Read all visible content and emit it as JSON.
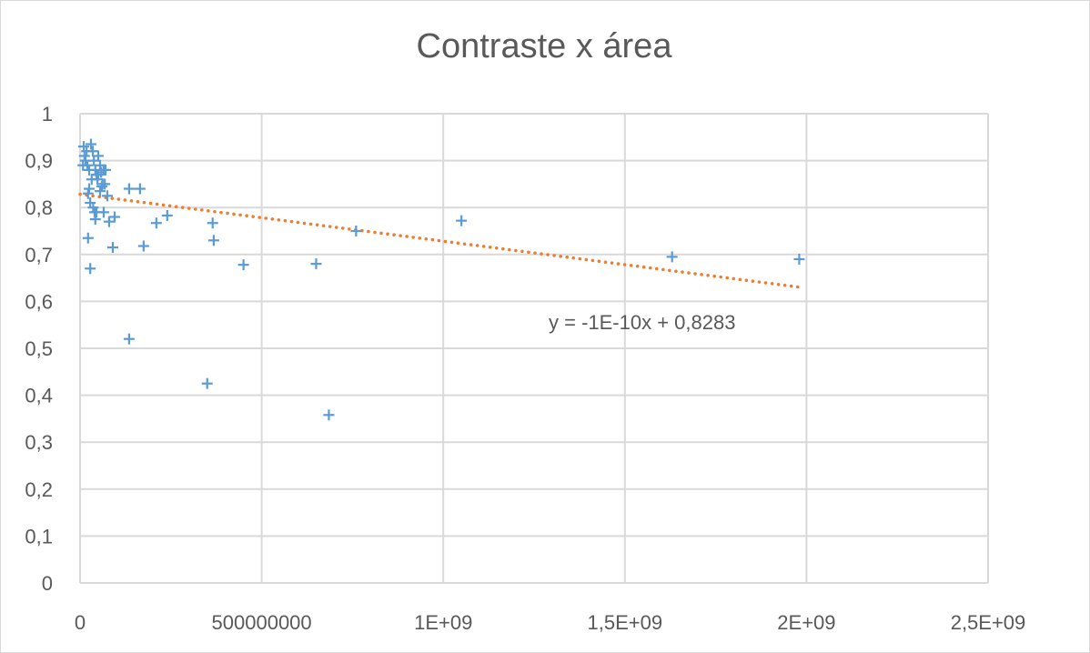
{
  "chart_data": {
    "type": "scatter",
    "title": "Contraste x área",
    "xlabel": "",
    "ylabel": "",
    "xlim": [
      0,
      2500000000
    ],
    "ylim": [
      0,
      1
    ],
    "x_ticks": [
      0,
      500000000,
      1000000000,
      1500000000,
      2000000000,
      2500000000
    ],
    "x_tick_labels": [
      "0",
      "500000000",
      "1E+09",
      "1,5E+09",
      "2E+09",
      "2,5E+09"
    ],
    "y_ticks": [
      0,
      0.1,
      0.2,
      0.3,
      0.4,
      0.5,
      0.6,
      0.7,
      0.8,
      0.9,
      1
    ],
    "y_tick_labels": [
      "0",
      "0,1",
      "0,2",
      "0,3",
      "0,4",
      "0,5",
      "0,6",
      "0,7",
      "0,8",
      "0,9",
      "1"
    ],
    "grid": true,
    "legend": "none",
    "series": [
      {
        "marker": "plus",
        "color": "#5b9bd5",
        "points": [
          [
            10000000,
            0.93
          ],
          [
            15000000,
            0.9
          ],
          [
            20000000,
            0.89
          ],
          [
            25000000,
            0.88
          ],
          [
            30000000,
            0.935
          ],
          [
            35000000,
            0.92
          ],
          [
            38000000,
            0.9
          ],
          [
            42000000,
            0.88
          ],
          [
            45000000,
            0.87
          ],
          [
            48000000,
            0.86
          ],
          [
            50000000,
            0.91
          ],
          [
            55000000,
            0.89
          ],
          [
            58000000,
            0.875
          ],
          [
            62000000,
            0.85
          ],
          [
            65000000,
            0.88
          ],
          [
            70000000,
            0.88
          ],
          [
            8000000,
            0.89
          ],
          [
            12000000,
            0.91
          ],
          [
            18000000,
            0.92
          ],
          [
            22000000,
            0.83
          ],
          [
            25000000,
            0.84
          ],
          [
            28000000,
            0.81
          ],
          [
            32000000,
            0.86
          ],
          [
            36000000,
            0.8
          ],
          [
            40000000,
            0.79
          ],
          [
            42000000,
            0.775
          ],
          [
            45000000,
            0.79
          ],
          [
            50000000,
            0.87
          ],
          [
            55000000,
            0.835
          ],
          [
            60000000,
            0.845
          ],
          [
            65000000,
            0.79
          ],
          [
            68000000,
            0.85
          ],
          [
            75000000,
            0.825
          ],
          [
            80000000,
            0.77
          ],
          [
            90000000,
            0.715
          ],
          [
            95000000,
            0.78
          ],
          [
            22000000,
            0.735
          ],
          [
            28000000,
            0.67
          ],
          [
            135000000,
            0.84
          ],
          [
            165000000,
            0.84
          ],
          [
            175000000,
            0.718
          ],
          [
            210000000,
            0.767
          ],
          [
            240000000,
            0.783
          ],
          [
            365000000,
            0.767
          ],
          [
            368000000,
            0.73
          ],
          [
            135000000,
            0.52
          ],
          [
            350000000,
            0.425
          ],
          [
            450000000,
            0.678
          ],
          [
            650000000,
            0.68
          ],
          [
            685000000,
            0.358
          ],
          [
            760000000,
            0.75
          ],
          [
            1050000000,
            0.772
          ],
          [
            1630000000,
            0.695
          ],
          [
            1980000000,
            0.69
          ]
        ]
      }
    ],
    "trendline": {
      "type": "linear",
      "slope": -1e-10,
      "intercept": 0.8283,
      "x_range": [
        0,
        1980000000
      ],
      "color": "#ed7d31",
      "style": "dotted",
      "equation_label": "y = -1E-10x + 0,8283"
    }
  }
}
